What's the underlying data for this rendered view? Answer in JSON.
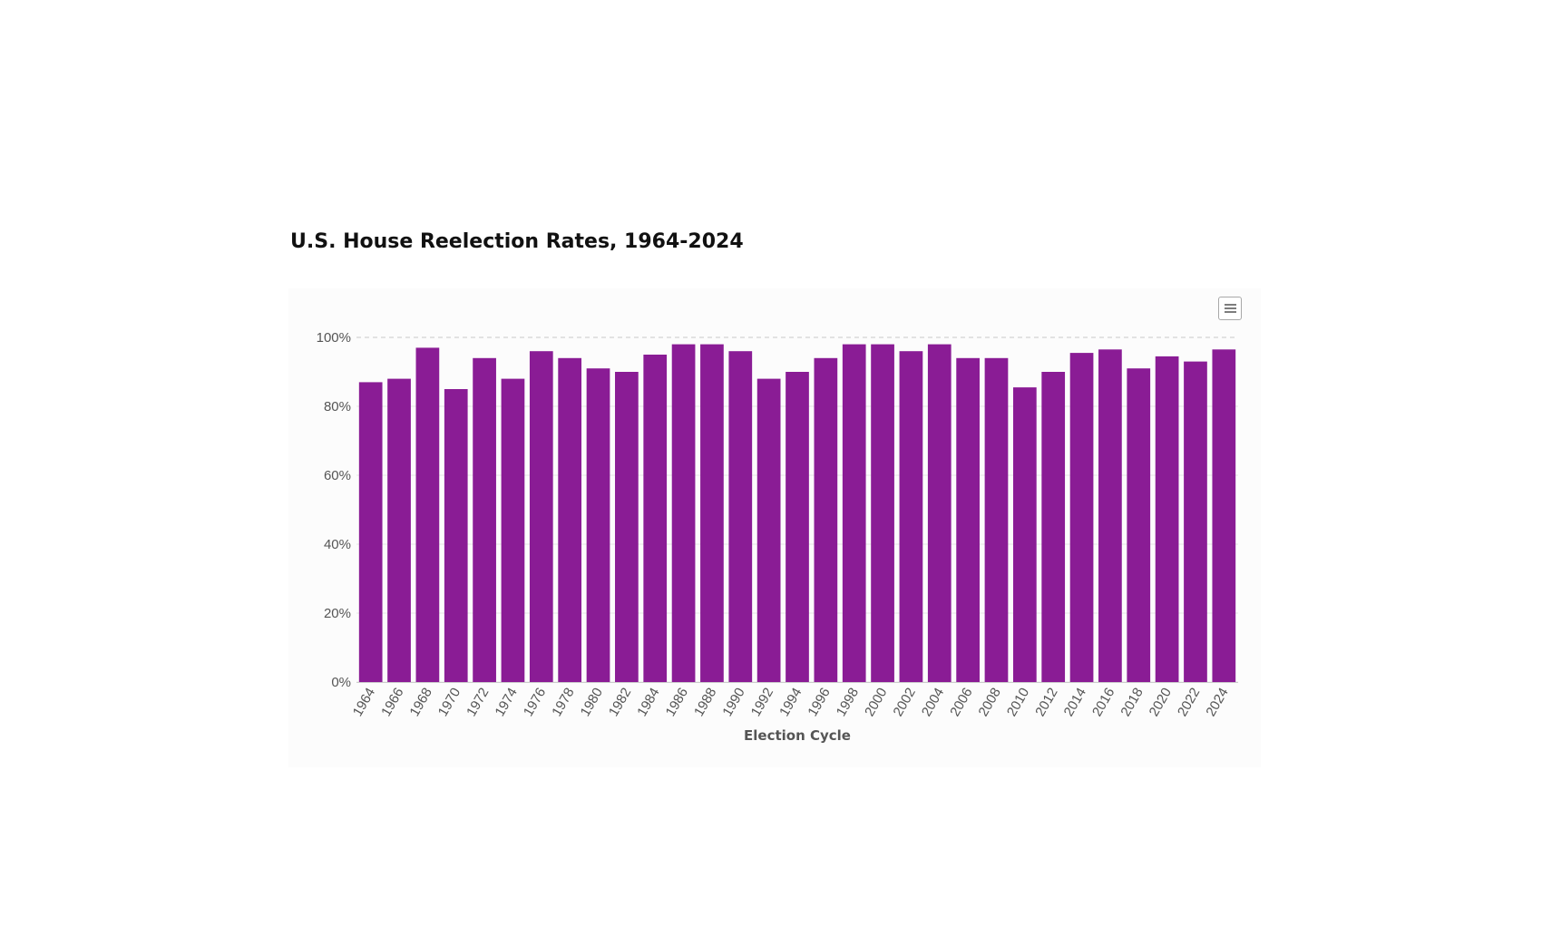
{
  "title": "U.S. House Reelection Rates, 1964-2024",
  "menu_icon": "hamburger-menu-icon",
  "colors": {
    "bar": "#8a1c95",
    "grid": "#e6e6e6",
    "top_grid": "#c8c8c8",
    "background": "#fcfcfc"
  },
  "chart_data": {
    "type": "bar",
    "title": "U.S. House Reelection Rates, 1964-2024",
    "xlabel": "Election Cycle",
    "ylabel": "",
    "ylim": [
      0,
      100
    ],
    "y_ticks": [
      "0%",
      "20%",
      "40%",
      "60%",
      "80%",
      "100%"
    ],
    "y_tick_values": [
      0,
      20,
      40,
      60,
      80,
      100
    ],
    "grid": true,
    "categories": [
      "1964",
      "1966",
      "1968",
      "1970",
      "1972",
      "1974",
      "1976",
      "1978",
      "1980",
      "1982",
      "1984",
      "1986",
      "1988",
      "1990",
      "1992",
      "1994",
      "1996",
      "1998",
      "2000",
      "2002",
      "2004",
      "2006",
      "2008",
      "2010",
      "2012",
      "2014",
      "2016",
      "2018",
      "2020",
      "2022",
      "2024"
    ],
    "values": [
      87,
      88,
      97,
      85,
      94,
      88,
      96,
      94,
      91,
      90,
      95,
      98,
      98,
      96,
      88,
      90,
      94,
      98,
      98,
      96,
      98,
      94,
      94,
      85.5,
      90,
      95.5,
      96.5,
      91,
      94.5,
      93,
      96.5
    ]
  }
}
